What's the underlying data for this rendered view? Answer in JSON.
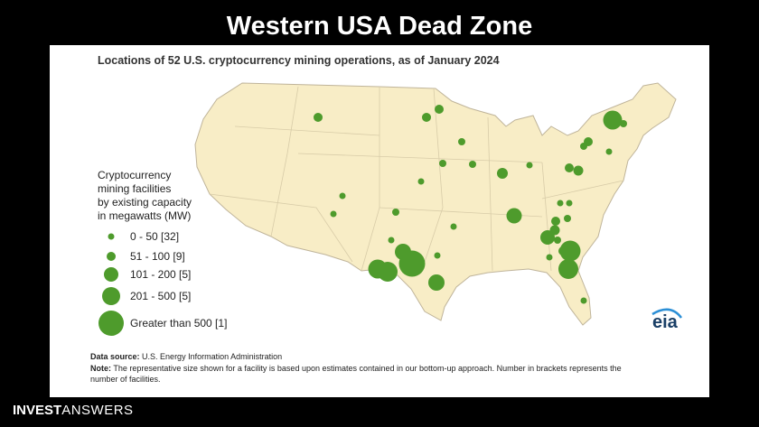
{
  "title": "Western USA Dead Zone",
  "map": {
    "title": "Locations of 52 U.S. cryptocurrency mining operations, as of January 2024",
    "legend": {
      "title_lines": [
        "Cryptocurrency",
        "mining facilities",
        "by existing capacity",
        "in megawatts (MW)"
      ],
      "items": [
        "0 - 50 [32]",
        "51 - 100 [9]",
        "101 - 200 [5]",
        "201 - 500 [5]",
        "Greater than 500 [1]"
      ]
    },
    "logo": "eia",
    "source_label": "Data source:",
    "source": "U.S. Energy Information Administration",
    "note_label": "Note:",
    "note_lines": [
      "The representative size shown for a facility is based upon estimates contained in our bottom-up approach. Number in brackets represents the",
      "number of facilities."
    ]
  },
  "brand": {
    "bold": "INVEST",
    "light": "ANSWERS"
  }
}
